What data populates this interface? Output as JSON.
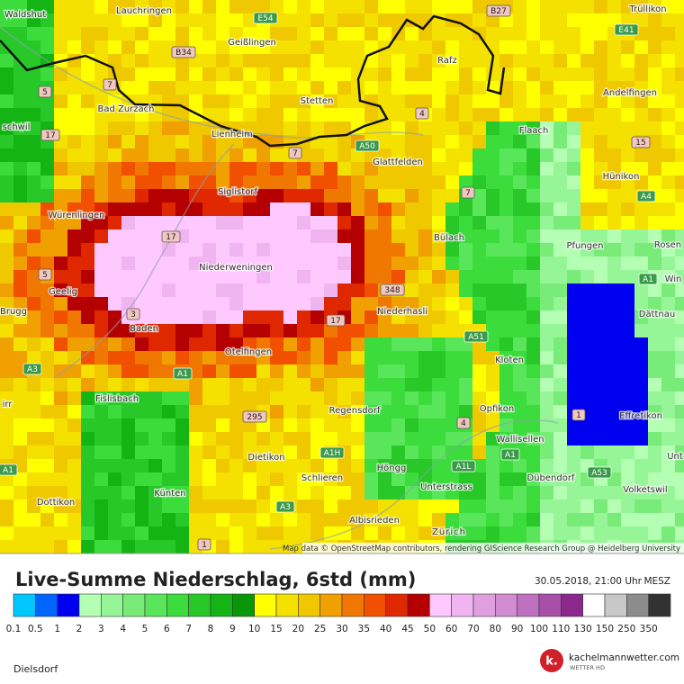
{
  "map": {
    "places": [
      "Waldshut",
      "Lauchringen",
      "Trüllikon",
      "Geißlingen",
      "Rafz",
      "Bad Zurzach",
      "Stetten",
      "Andelfingen",
      "schwil",
      "Lienheim",
      "Flaach",
      "Glattfelden",
      "Hünikon",
      "Siglistorf",
      "Würenlingen",
      "Bülach",
      "Pfungen",
      "Rosen",
      "Niederweningen",
      "Win",
      "Geelig",
      "Dättnau",
      "Brugg",
      "Niederhasli",
      "Baden",
      "Otelfingen",
      "Kloten",
      "irr",
      "Fislisbach",
      "Opfikon",
      "Regensdorf",
      "Effretikon",
      "Wallisellen",
      "Dietikon",
      "Schlieren",
      "Höngg",
      "Dübendorf",
      "Unterstrass",
      "Volketswil",
      "Unt",
      "Dottikon",
      "Künten",
      "Albisrieden",
      "Zürich"
    ],
    "roads": [
      "E54",
      "B27",
      "E41",
      "B34",
      "7",
      "5",
      "4",
      "17",
      "15",
      "A50",
      "7",
      "A4",
      "7",
      "17",
      "5",
      "A1",
      "348",
      "3",
      "17",
      "A51",
      "A3",
      "A1",
      "1",
      "295",
      "4",
      "A1H",
      "A1",
      "A1L",
      "A53",
      "A1",
      "A3",
      "1"
    ],
    "attribution": "Map data © OpenStreetMap contributors, rendering GIScience Research Group @ Heidelberg University"
  },
  "footer": {
    "title": "Live-Summe Niederschlag, 6std (mm)",
    "timestamp": "30.05.2018, 21:00 Uhr",
    "timezone": "MESZ",
    "legend": [
      {
        "label": "0.1",
        "color": "#00c8ff"
      },
      {
        "label": "0.5",
        "color": "#0064ff"
      },
      {
        "label": "1",
        "color": "#0000f0"
      },
      {
        "label": "2",
        "color": "#b4ffb4"
      },
      {
        "label": "3",
        "color": "#96f596"
      },
      {
        "label": "4",
        "color": "#78eb78"
      },
      {
        "label": "5",
        "color": "#5ae65a"
      },
      {
        "label": "6",
        "color": "#3cdc3c"
      },
      {
        "label": "7",
        "color": "#28c828"
      },
      {
        "label": "8",
        "color": "#14b414"
      },
      {
        "label": "9",
        "color": "#0a960a"
      },
      {
        "label": "10",
        "color": "#ffff00"
      },
      {
        "label": "15",
        "color": "#f5e100"
      },
      {
        "label": "20",
        "color": "#f0c800"
      },
      {
        "label": "25",
        "color": "#f0a000"
      },
      {
        "label": "30",
        "color": "#f07800"
      },
      {
        "label": "35",
        "color": "#f05000"
      },
      {
        "label": "40",
        "color": "#e02800"
      },
      {
        "label": "45",
        "color": "#b40000"
      },
      {
        "label": "50",
        "color": "#ffc8ff"
      },
      {
        "label": "60",
        "color": "#f0b4f0"
      },
      {
        "label": "70",
        "color": "#e0a0e0"
      },
      {
        "label": "80",
        "color": "#d28cd2"
      },
      {
        "label": "90",
        "color": "#c070c0"
      },
      {
        "label": "100",
        "color": "#a850a8"
      },
      {
        "label": "110",
        "color": "#8c288c"
      },
      {
        "label": "130",
        "color": "#ffffff"
      },
      {
        "label": "150",
        "color": "#c8c8c8"
      },
      {
        "label": "250",
        "color": "#8c8c8c"
      },
      {
        "label": "350",
        "color": "#323232"
      }
    ],
    "location": "Dielsdorf",
    "logo": "k.",
    "brand": "kachelmannwetter.com",
    "brand_sub": "WETTER HD"
  }
}
